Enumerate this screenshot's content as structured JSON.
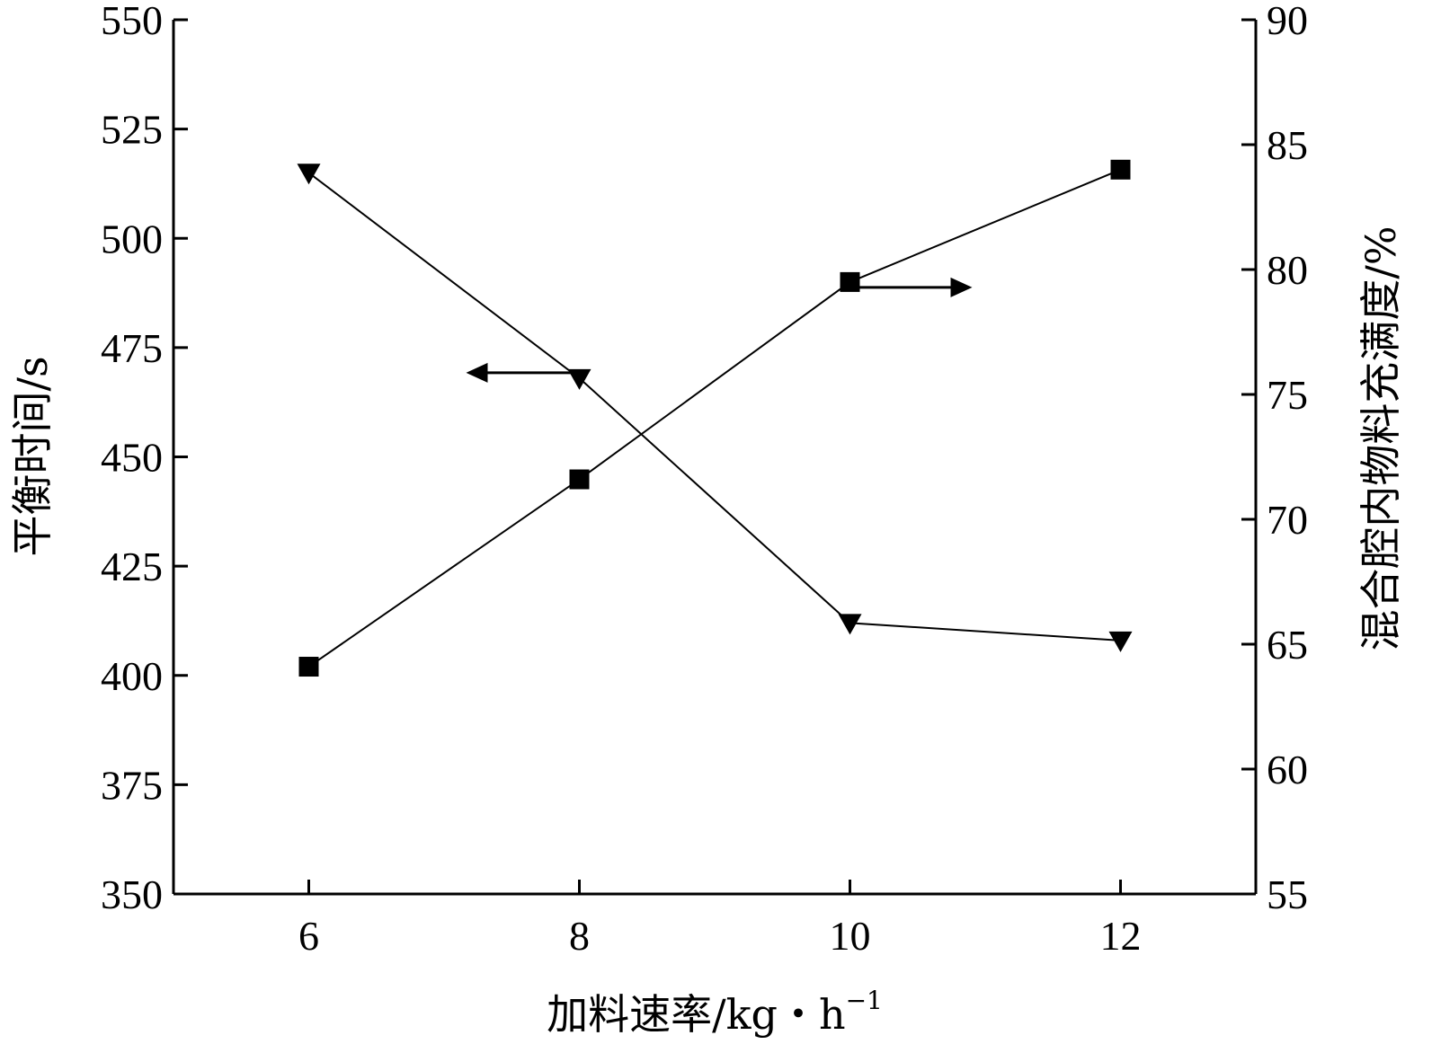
{
  "chart_data": {
    "type": "line",
    "title": "",
    "xlabel": "加料速率/kg・h",
    "xlabel_sup": "−1",
    "ylabel": "平衡时间/s",
    "y2label": "混合腔内物料充满度/%",
    "x": [
      6,
      8,
      10,
      12
    ],
    "xlim": [
      5,
      13
    ],
    "xticks": [
      6,
      8,
      10,
      12
    ],
    "ylim": [
      350,
      550
    ],
    "yticks": [
      350,
      375,
      400,
      425,
      450,
      475,
      500,
      525,
      550
    ],
    "y2lim": [
      55,
      90
    ],
    "y2ticks": [
      55,
      60,
      65,
      70,
      75,
      80,
      85,
      90
    ],
    "grid": false,
    "series": [
      {
        "marker": "triangle-down",
        "axis": "left",
        "values": [
          515,
          468,
          412,
          408
        ]
      },
      {
        "marker": "square",
        "axis": "right",
        "values": [
          64.1,
          71.6,
          79.5,
          84.0
        ]
      }
    ],
    "annotations": [
      {
        "type": "arrow",
        "direction": "left",
        "points_to": "left-axis"
      },
      {
        "type": "arrow",
        "direction": "right",
        "points_to": "right-axis"
      }
    ]
  }
}
